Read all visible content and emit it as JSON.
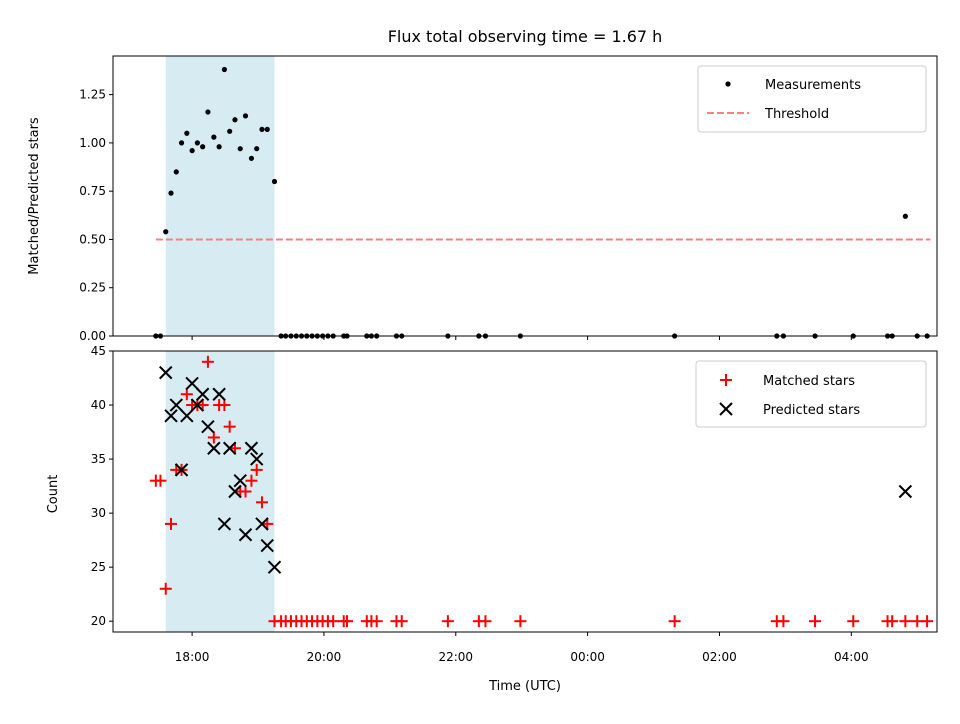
{
  "chart_data": [
    {
      "type": "scatter",
      "title": "Flux total observing time = 1.67 h",
      "xlabel": "",
      "ylabel": "Matched/Predicted stars",
      "ylim": [
        0,
        1.45
      ],
      "yticks": [
        "0.00",
        "0.25",
        "0.50",
        "0.75",
        "1.00",
        "1.25"
      ],
      "x_unit": "hours since 17:00 UTC",
      "xlim": [
        -0.2,
        12.3
      ],
      "shaded_span": [
        0.6,
        2.25
      ],
      "threshold": {
        "name": "Threshold",
        "value": 0.5,
        "x_range": [
          0.45,
          12.2
        ],
        "color": "#ff7f7f"
      },
      "legend": [
        "Measurements",
        "Threshold"
      ],
      "legend_position": "upper right",
      "series": [
        {
          "name": "Measurements",
          "color": "#000000",
          "points": [
            [
              0.45,
              0
            ],
            [
              0.52,
              0
            ],
            [
              0.6,
              0.54
            ],
            [
              0.68,
              0.74
            ],
            [
              0.76,
              0.85
            ],
            [
              0.84,
              1.0
            ],
            [
              0.92,
              1.05
            ],
            [
              1.0,
              0.96
            ],
            [
              1.08,
              1.0
            ],
            [
              1.16,
              0.98
            ],
            [
              1.24,
              1.16
            ],
            [
              1.33,
              1.03
            ],
            [
              1.41,
              0.98
            ],
            [
              1.49,
              1.38
            ],
            [
              1.57,
              1.06
            ],
            [
              1.65,
              1.12
            ],
            [
              1.73,
              0.97
            ],
            [
              1.81,
              1.14
            ],
            [
              1.9,
              0.92
            ],
            [
              1.98,
              0.97
            ],
            [
              2.06,
              1.07
            ],
            [
              2.14,
              1.07
            ],
            [
              2.25,
              0.8
            ],
            [
              2.35,
              0
            ],
            [
              2.42,
              0
            ],
            [
              2.5,
              0
            ],
            [
              2.58,
              0
            ],
            [
              2.66,
              0
            ],
            [
              2.74,
              0
            ],
            [
              2.82,
              0
            ],
            [
              2.9,
              0
            ],
            [
              2.98,
              0
            ],
            [
              3.06,
              0
            ],
            [
              3.14,
              0
            ],
            [
              3.3,
              0
            ],
            [
              3.35,
              0
            ],
            [
              3.65,
              0
            ],
            [
              3.72,
              0
            ],
            [
              3.8,
              0
            ],
            [
              4.1,
              0
            ],
            [
              4.18,
              0
            ],
            [
              4.88,
              0
            ],
            [
              5.35,
              0
            ],
            [
              5.45,
              0
            ],
            [
              5.98,
              0
            ],
            [
              8.32,
              0
            ],
            [
              9.87,
              0
            ],
            [
              9.97,
              0
            ],
            [
              10.45,
              0
            ],
            [
              11.03,
              0
            ],
            [
              11.55,
              0
            ],
            [
              11.62,
              0
            ],
            [
              11.82,
              0.62
            ],
            [
              12.0,
              0
            ],
            [
              12.15,
              0
            ]
          ]
        }
      ]
    },
    {
      "type": "scatter",
      "title": "",
      "xlabel": "Time (UTC)",
      "ylabel": "Count",
      "ylim": [
        19,
        45
      ],
      "yticks": [
        "20",
        "25",
        "30",
        "35",
        "40",
        "45"
      ],
      "xticks": [
        "18:00",
        "20:00",
        "22:00",
        "00:00",
        "02:00",
        "04:00"
      ],
      "x_unit": "hours since 17:00 UTC",
      "xlim": [
        -0.2,
        12.3
      ],
      "shaded_span": [
        0.6,
        2.25
      ],
      "legend": [
        "Matched stars",
        "Predicted stars"
      ],
      "legend_position": "upper right",
      "series": [
        {
          "name": "Matched stars",
          "marker": "+",
          "color": "#ff0000",
          "points": [
            [
              0.45,
              33
            ],
            [
              0.52,
              33
            ],
            [
              0.6,
              23
            ],
            [
              0.68,
              29
            ],
            [
              0.76,
              34
            ],
            [
              0.84,
              34
            ],
            [
              0.92,
              41
            ],
            [
              1.0,
              40
            ],
            [
              1.08,
              40
            ],
            [
              1.16,
              40
            ],
            [
              1.24,
              44
            ],
            [
              1.33,
              37
            ],
            [
              1.41,
              40
            ],
            [
              1.49,
              40
            ],
            [
              1.57,
              38
            ],
            [
              1.65,
              36
            ],
            [
              1.73,
              32
            ],
            [
              1.81,
              32
            ],
            [
              1.9,
              33
            ],
            [
              1.98,
              34
            ],
            [
              2.06,
              31
            ],
            [
              2.14,
              29
            ],
            [
              2.25,
              20
            ],
            [
              2.35,
              20
            ],
            [
              2.42,
              20
            ],
            [
              2.5,
              20
            ],
            [
              2.58,
              20
            ],
            [
              2.66,
              20
            ],
            [
              2.74,
              20
            ],
            [
              2.82,
              20
            ],
            [
              2.9,
              20
            ],
            [
              2.98,
              20
            ],
            [
              3.06,
              20
            ],
            [
              3.14,
              20
            ],
            [
              3.3,
              20
            ],
            [
              3.35,
              20
            ],
            [
              3.65,
              20
            ],
            [
              3.72,
              20
            ],
            [
              3.8,
              20
            ],
            [
              4.1,
              20
            ],
            [
              4.18,
              20
            ],
            [
              4.88,
              20
            ],
            [
              5.35,
              20
            ],
            [
              5.45,
              20
            ],
            [
              5.98,
              20
            ],
            [
              8.32,
              20
            ],
            [
              9.87,
              20
            ],
            [
              9.97,
              20
            ],
            [
              10.45,
              20
            ],
            [
              11.03,
              20
            ],
            [
              11.55,
              20
            ],
            [
              11.62,
              20
            ],
            [
              11.82,
              20
            ],
            [
              12.0,
              20
            ],
            [
              12.15,
              20
            ]
          ]
        },
        {
          "name": "Predicted stars",
          "marker": "x",
          "color": "#000000",
          "points": [
            [
              0.6,
              43
            ],
            [
              0.68,
              39
            ],
            [
              0.76,
              40
            ],
            [
              0.84,
              34
            ],
            [
              0.92,
              39
            ],
            [
              1.0,
              42
            ],
            [
              1.08,
              40
            ],
            [
              1.16,
              41
            ],
            [
              1.24,
              38
            ],
            [
              1.33,
              36
            ],
            [
              1.41,
              41
            ],
            [
              1.49,
              29
            ],
            [
              1.57,
              36
            ],
            [
              1.65,
              32
            ],
            [
              1.73,
              33
            ],
            [
              1.81,
              28
            ],
            [
              1.9,
              36
            ],
            [
              1.98,
              35
            ],
            [
              2.06,
              29
            ],
            [
              2.14,
              27
            ],
            [
              2.25,
              25
            ],
            [
              11.82,
              32
            ]
          ]
        }
      ]
    }
  ]
}
